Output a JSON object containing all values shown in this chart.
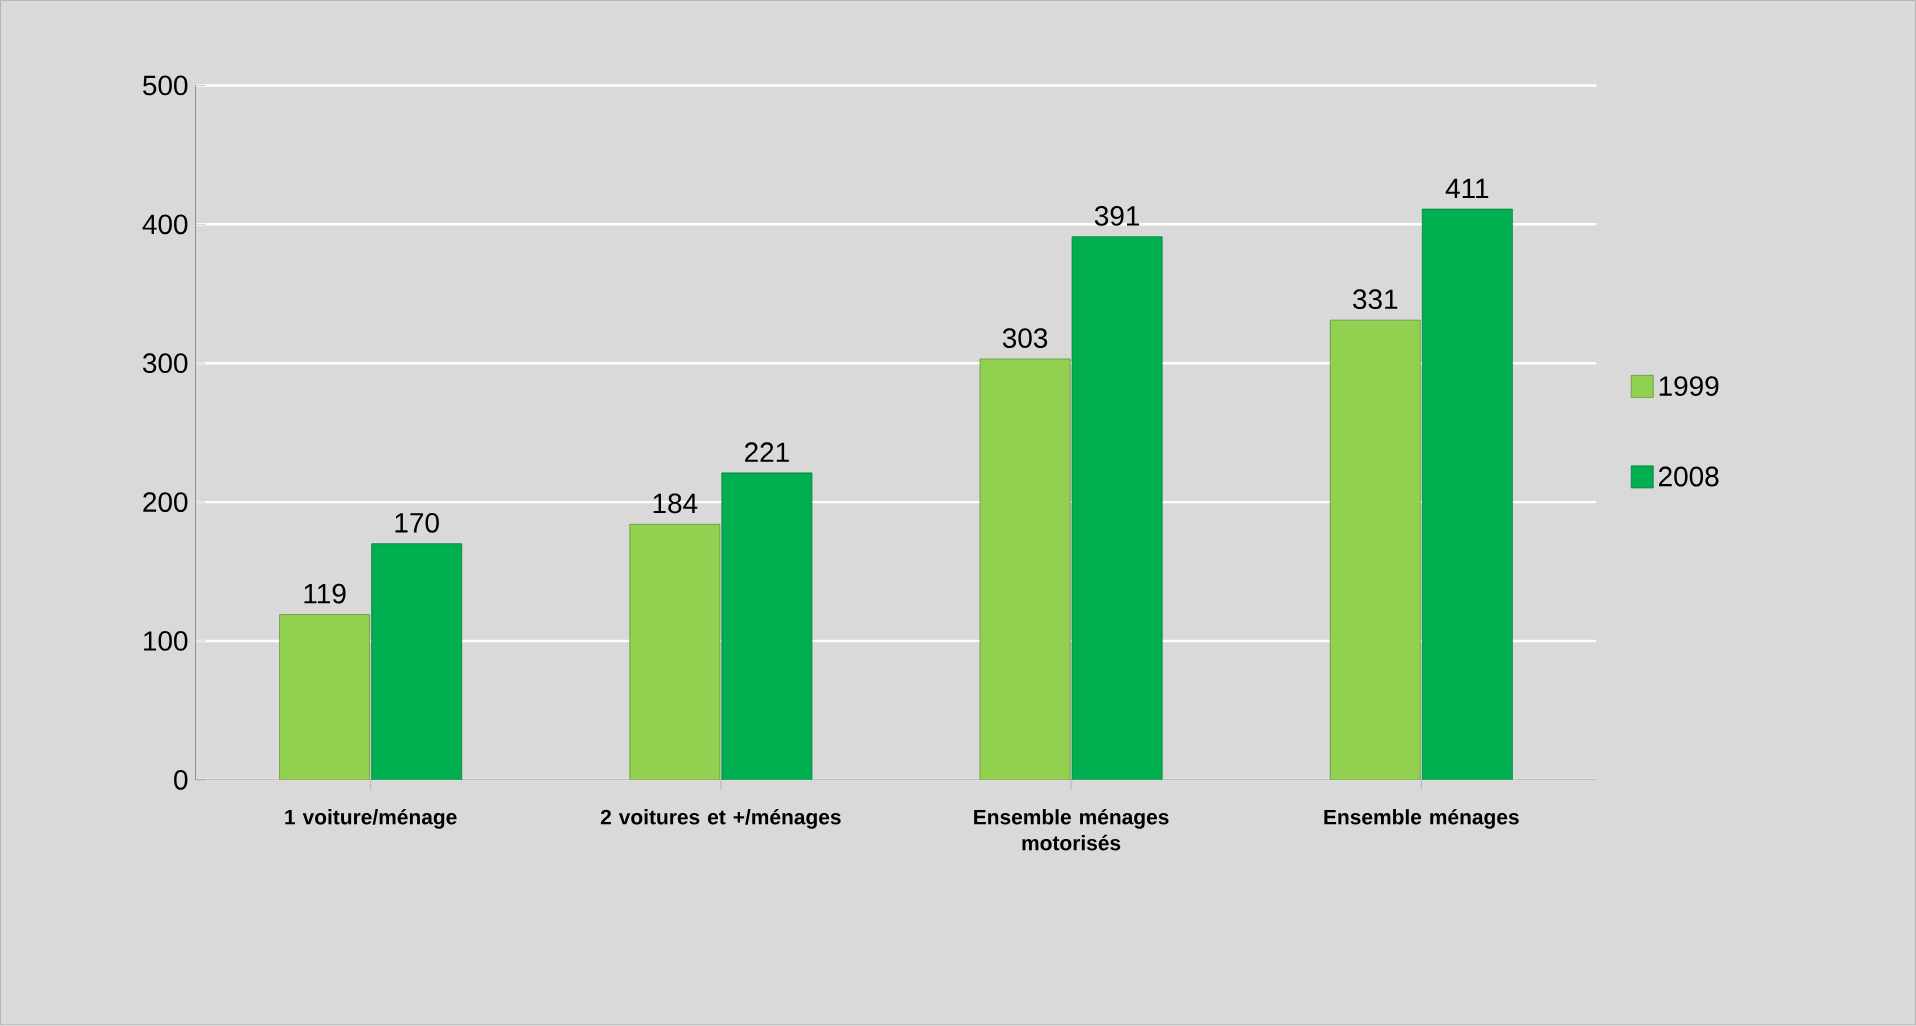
{
  "chart_data": {
    "type": "bar",
    "categories": [
      "1 voiture/ménage",
      "2 voitures et +/ménages",
      "Ensemble ménages motorisés",
      "Ensemble ménages"
    ],
    "series": [
      {
        "name": "1999",
        "color": "#92d050",
        "values": [
          119,
          184,
          303,
          331
        ]
      },
      {
        "name": "2008",
        "color": "#00b050",
        "values": [
          170,
          221,
          391,
          411
        ]
      }
    ],
    "ylim": [
      0,
      500
    ],
    "yticks": [
      0,
      100,
      200,
      300,
      400,
      500
    ],
    "grid": "y",
    "legend": "right",
    "data_labels": true
  }
}
